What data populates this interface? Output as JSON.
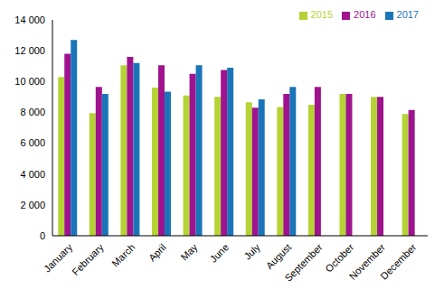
{
  "chart_data": {
    "type": "bar",
    "categories": [
      "January",
      "February",
      "March",
      "April",
      "May",
      "June",
      "July",
      "August",
      "September",
      "October",
      "November",
      "December"
    ],
    "series": [
      {
        "name": "2015",
        "color": "#b5d334",
        "values": [
          10300,
          7950,
          11050,
          9600,
          9100,
          9000,
          8650,
          8350,
          8500,
          9200,
          9000,
          7900
        ]
      },
      {
        "name": "2016",
        "color": "#a0138e",
        "values": [
          11800,
          9650,
          11600,
          11050,
          10500,
          10750,
          8300,
          9200,
          9650,
          9200,
          9000,
          8150
        ]
      },
      {
        "name": "2017",
        "color": "#1a75b8",
        "values": [
          12700,
          9200,
          11200,
          9350,
          11050,
          10900,
          8850,
          9650,
          null,
          null,
          null,
          null
        ]
      }
    ],
    "ylim": [
      0,
      14000
    ],
    "yticks": [
      0,
      {
        "value": 2000,
        "label": "2 000"
      },
      {
        "value": 4000,
        "label": "4 000"
      },
      {
        "value": 6000,
        "label": "6 000"
      },
      {
        "value": 8000,
        "label": "8 000"
      },
      {
        "value": 10000,
        "label": "10 000"
      },
      {
        "value": 12000,
        "label": "12 000"
      },
      {
        "value": 14000,
        "label": "14 000"
      }
    ],
    "grid": false,
    "legend": "top-right"
  }
}
